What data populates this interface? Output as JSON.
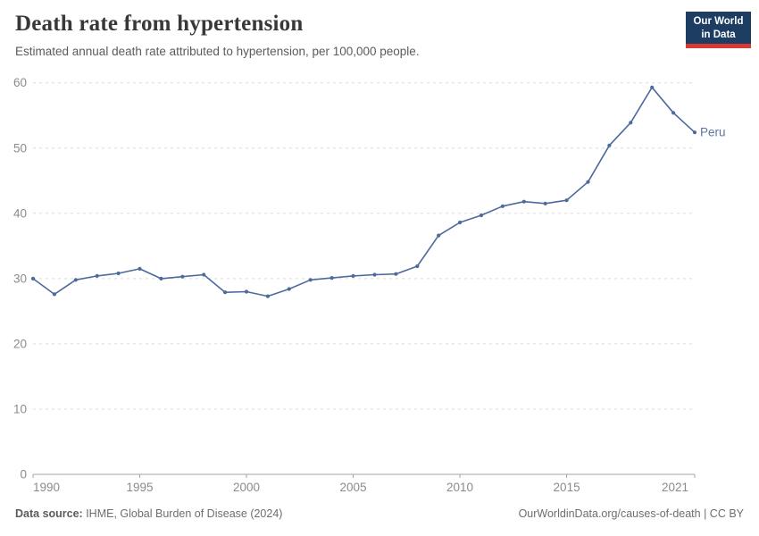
{
  "header": {
    "title": "Death rate from hypertension",
    "subtitle": "Estimated annual death rate attributed to hypertension, per 100,000 people.",
    "logo": {
      "line1": "Our World",
      "line2": "in Data"
    }
  },
  "chart_data": {
    "type": "line",
    "title": "Death rate from hypertension",
    "xlabel": "",
    "ylabel": "",
    "x": [
      1990,
      1991,
      1992,
      1993,
      1994,
      1995,
      1996,
      1997,
      1998,
      1999,
      2000,
      2001,
      2002,
      2003,
      2004,
      2005,
      2006,
      2007,
      2008,
      2009,
      2010,
      2011,
      2012,
      2013,
      2014,
      2015,
      2016,
      2017,
      2018,
      2019,
      2020,
      2021
    ],
    "series": [
      {
        "name": "Peru",
        "values": [
          30.0,
          27.6,
          29.8,
          30.4,
          30.8,
          31.5,
          30.0,
          30.3,
          30.6,
          27.9,
          28.0,
          27.3,
          28.4,
          29.8,
          30.1,
          30.4,
          30.6,
          30.7,
          31.9,
          36.6,
          38.6,
          39.7,
          41.1,
          41.8,
          41.5,
          42.0,
          44.8,
          50.4,
          53.9,
          59.3,
          55.4,
          52.4
        ]
      }
    ],
    "x_ticks": [
      1990,
      1995,
      2000,
      2005,
      2010,
      2015,
      2021
    ],
    "y_ticks": [
      0,
      10,
      20,
      30,
      40,
      50,
      60
    ],
    "xlim": [
      1990,
      2021
    ],
    "ylim": [
      0,
      60
    ],
    "grid": "horizontal-dashed",
    "legend_position": "end-of-line",
    "end_label": "Peru"
  },
  "colors": {
    "line": "#4C6A9C",
    "end_label": "#5b77a0",
    "grid": "#dcdcdc",
    "axis": "#a3a3a3",
    "tick_text": "#8b8b8b",
    "logo_bg": "#1d3d63",
    "logo_red": "#d73a35"
  },
  "footer": {
    "source_label": "Data source:",
    "source_text": " IHME, Global Burden of Disease (2024)",
    "credit": "OurWorldinData.org/causes-of-death | CC BY"
  }
}
